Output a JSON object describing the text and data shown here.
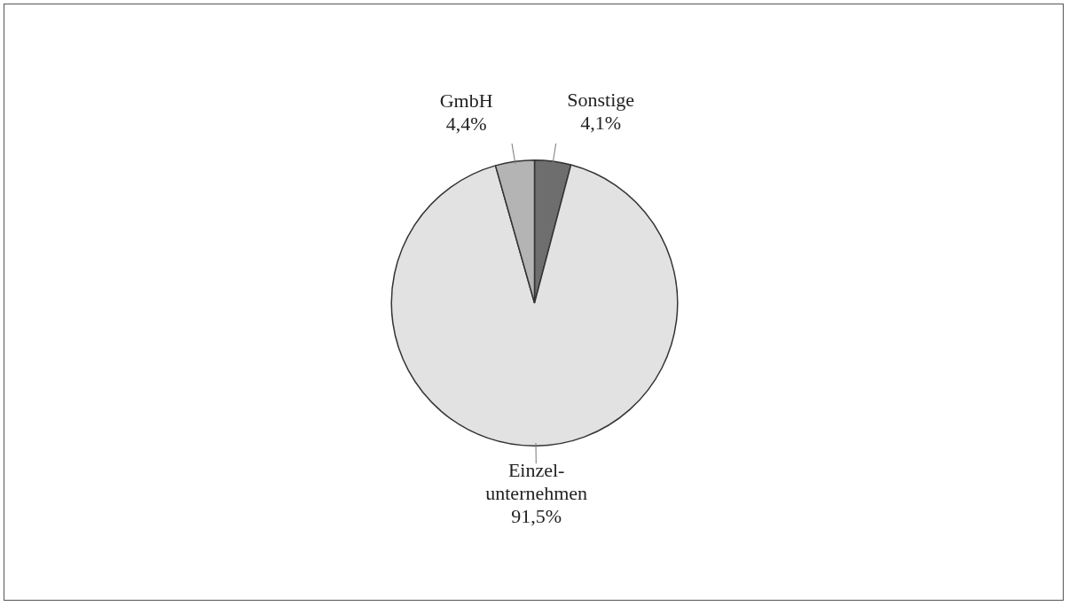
{
  "chart_data": {
    "type": "pie",
    "categories": [
      "Sonstige",
      "Einzel-unternehmen",
      "GmbH"
    ],
    "values": [
      4.1,
      91.5,
      4.4
    ],
    "colors": [
      "#6e6e6e",
      "#e2e2e2",
      "#b4b4b4"
    ],
    "value_labels": [
      "4,1%",
      "91,5%",
      "4,4%"
    ]
  }
}
